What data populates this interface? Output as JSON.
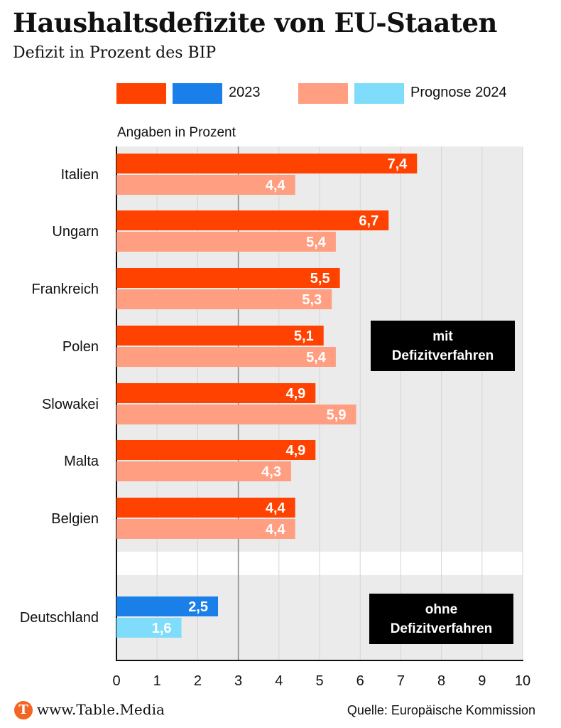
{
  "header": {
    "title": "Haushaltsdefizite von EU-Staaten",
    "subtitle": "Defizit in Prozent des BIP"
  },
  "legend": {
    "label_2023": "2023",
    "label_2024": "Prognose 2024"
  },
  "colors": {
    "eu_2023": "#ff4200",
    "eu_2024": "#ff9e80",
    "de_2023": "#1a7fe8",
    "de_2024": "#7fdcfb",
    "panel": "#ebebeb"
  },
  "groups": {
    "with_procedure": [
      "mit",
      "Defizitverfahren"
    ],
    "without_procedure": [
      "ohne",
      "Defizitverfahren"
    ]
  },
  "footer": {
    "logo_letter": "T",
    "site": "www.Table.Media",
    "source": "Quelle: Europäische Kommission"
  },
  "chart_data": {
    "type": "bar",
    "orientation": "horizontal",
    "units_label": "Angaben in Prozent",
    "categories": [
      "Italien",
      "Ungarn",
      "Frankreich",
      "Polen",
      "Slowakei",
      "Malta",
      "Belgien",
      "Deutschland"
    ],
    "value_labels": {
      "2023": [
        "7,4",
        "6,7",
        "5,5",
        "5,1",
        "4,9",
        "4,9",
        "4,4",
        "2,5"
      ],
      "prognose_2024": [
        "4,4",
        "5,4",
        "5,3",
        "5,4",
        "5,9",
        "4,3",
        "4,4",
        "1,6"
      ]
    },
    "series": [
      {
        "name": "2023",
        "values": [
          7.4,
          6.7,
          5.5,
          5.1,
          4.9,
          4.9,
          4.4,
          2.5
        ]
      },
      {
        "name": "Prognose 2024",
        "values": [
          4.4,
          5.4,
          5.3,
          5.4,
          5.9,
          4.3,
          4.4,
          1.6
        ]
      }
    ],
    "xlim": [
      0,
      10
    ],
    "xticks": [
      "0",
      "1",
      "2",
      "3",
      "4",
      "5",
      "6",
      "7",
      "8",
      "9",
      "10"
    ],
    "grid": true,
    "legend_position": "top"
  }
}
